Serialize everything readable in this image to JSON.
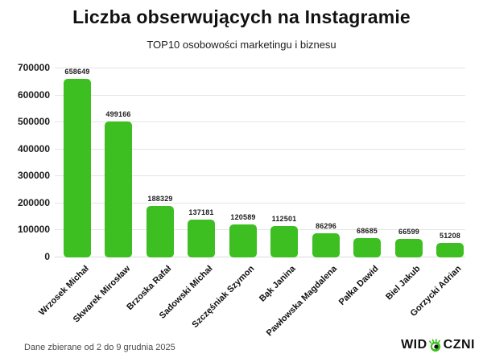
{
  "header": {
    "title": "Liczba obserwujących na Instagramie",
    "subtitle": "TOP10 osobowości marketingu i biznesu"
  },
  "chart_data": {
    "type": "bar",
    "title": "Liczba obserwujących na Instagramie",
    "subtitle": "TOP10 osobowości marketingu i biznesu",
    "categories": [
      "Wrzosek Michał",
      "Skwarek Mirosław",
      "Brzoska Rafał",
      "Sadowski Michał",
      "Szczęśniak Szymon",
      "Bąk Janina",
      "Pawłowska Magdalena",
      "Pałka Dawid",
      "Biel Jakub",
      "Gorzycki Adrian"
    ],
    "values": [
      658649,
      499166,
      188329,
      137181,
      120589,
      112501,
      86296,
      68685,
      66599,
      51208
    ],
    "value_labels": [
      "658649",
      "499166",
      "188329",
      "137181",
      "120589",
      "112501",
      "86296",
      "68685",
      "66599",
      "51208"
    ],
    "xlabel": "",
    "ylabel": "",
    "ylim": [
      0,
      700000
    ],
    "yticks": [
      0,
      100000,
      200000,
      300000,
      400000,
      500000,
      600000,
      700000
    ],
    "ytick_labels": [
      "0",
      "100000",
      "200000",
      "300000",
      "400000",
      "500000",
      "600000",
      "700000"
    ],
    "grid": true,
    "legend": "none",
    "bar_color": "#3dbe21"
  },
  "footer": {
    "note": "Dane zbierane od 2 do 9 grudnia 2025",
    "logo_left": "WID",
    "logo_right": "CZNI",
    "logo_icon": "eye-icon",
    "logo_icon_color": "#3dbe21"
  },
  "colors": {
    "bar": "#3dbe21",
    "gridline": "#e4e4e4",
    "title_text": "#111111",
    "axis_text": "#1c1c1c",
    "footer_text": "#4a4a4a",
    "background": "#ffffff"
  }
}
